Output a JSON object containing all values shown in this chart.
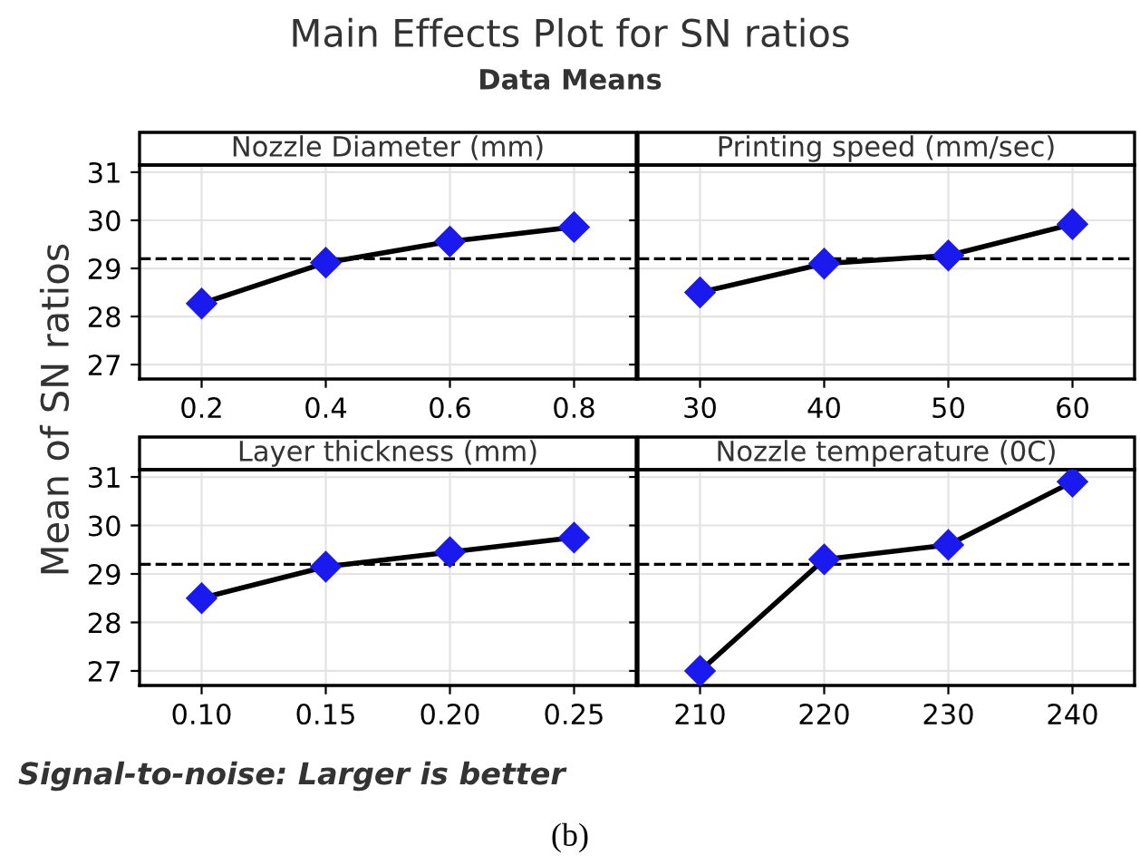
{
  "chart_data": [
    {
      "type": "line",
      "title": "Main Effects Plot for SN ratios",
      "subtitle": "Data Means",
      "ylabel": "Mean of SN ratios",
      "xlabel": "Nozzle Diameter (mm)",
      "categories": [
        "0.2",
        "0.4",
        "0.6",
        "0.8"
      ],
      "series": [
        {
          "color": "#1a1aee",
          "values": [
            28.27,
            29.12,
            29.56,
            29.86
          ]
        }
      ],
      "ylim": [
        26.7,
        31.15
      ],
      "yticks": [
        27,
        28,
        29,
        30,
        31
      ],
      "grid": true,
      "marker": "diamond",
      "line_style": "solid",
      "ref_lines": [
        {
          "axis": "y",
          "value": 29.2,
          "line_style": "dashed",
          "color": "#000000"
        }
      ],
      "annotations": [
        "Signal-to-noise: Larger is better",
        "(b)"
      ]
    },
    {
      "type": "line",
      "xlabel": "Printing speed (mm/sec)",
      "categories": [
        "30",
        "40",
        "50",
        "60"
      ],
      "series": [
        {
          "color": "#1a1aee",
          "values": [
            28.5,
            29.1,
            29.27,
            29.92
          ]
        }
      ],
      "ylim": [
        26.7,
        31.15
      ],
      "yticks": [
        27,
        28,
        29,
        30,
        31
      ],
      "grid": true,
      "marker": "diamond",
      "line_style": "solid",
      "tick_labels": "x",
      "ref_lines": [
        {
          "axis": "y",
          "value": 29.2,
          "line_style": "dashed",
          "color": "#000000"
        }
      ]
    },
    {
      "type": "line",
      "xlabel": "Layer thickness (mm)",
      "categories": [
        "0.10",
        "0.15",
        "0.20",
        "0.25"
      ],
      "series": [
        {
          "color": "#1a1aee",
          "values": [
            28.5,
            29.15,
            29.45,
            29.75
          ]
        }
      ],
      "ylim": [
        26.7,
        31.15
      ],
      "yticks": [
        27,
        28,
        29,
        30,
        31
      ],
      "grid": true,
      "marker": "diamond",
      "line_style": "solid",
      "ref_lines": [
        {
          "axis": "y",
          "value": 29.2,
          "line_style": "dashed",
          "color": "#000000"
        }
      ]
    },
    {
      "type": "line",
      "xlabel": "Nozzle temperature (0C)",
      "categories": [
        "210",
        "220",
        "230",
        "240"
      ],
      "series": [
        {
          "color": "#1a1aee",
          "values": [
            27.0,
            29.3,
            29.6,
            30.9
          ]
        }
      ],
      "ylim": [
        26.7,
        31.15
      ],
      "yticks": [
        27,
        28,
        29,
        30,
        31
      ],
      "grid": true,
      "marker": "diamond",
      "line_style": "solid",
      "tick_labels": "x",
      "ref_lines": [
        {
          "axis": "y",
          "value": 29.2,
          "line_style": "dashed",
          "color": "#000000"
        }
      ]
    }
  ]
}
